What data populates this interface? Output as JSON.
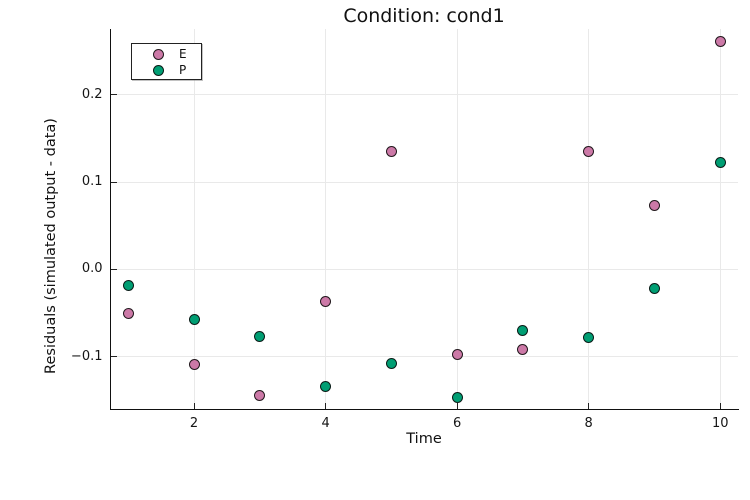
{
  "title": "Condition: cond1",
  "chart_data": {
    "type": "scatter",
    "title": "Condition: cond1",
    "xlabel": "Time",
    "ylabel": "Residuals (simulated output - data)",
    "x": [
      1,
      2,
      3,
      4,
      5,
      6,
      7,
      8,
      9,
      10
    ],
    "series": [
      {
        "name": "E",
        "color": "#CC79A7",
        "values": [
          -0.05,
          -0.109,
          -0.144,
          -0.037,
          0.135,
          -0.097,
          -0.092,
          0.135,
          0.073,
          0.261
        ]
      },
      {
        "name": "P",
        "color": "#009E73",
        "values": [
          -0.019,
          -0.057,
          -0.077,
          -0.134,
          -0.108,
          -0.147,
          -0.07,
          -0.078,
          -0.022,
          0.123
        ]
      }
    ],
    "xlim": [
      0.73,
      10.27
    ],
    "ylim": [
      -0.16,
      0.2756
    ],
    "xticks": {
      "values": [
        2,
        4,
        6,
        8,
        10
      ],
      "labels": [
        "2",
        "4",
        "6",
        "8",
        "10"
      ]
    },
    "yticks": {
      "values": [
        -0.1,
        0.0,
        0.1,
        0.2
      ],
      "labels": [
        "−0.1",
        "0.0",
        "0.1",
        "0.2"
      ]
    },
    "grid": true,
    "legend_position": "top-left",
    "background_color": "#ffffff",
    "grid_color": "#e9e9e9",
    "axis_color": "#111111",
    "marker_edge_color": "#0a0a0a"
  }
}
